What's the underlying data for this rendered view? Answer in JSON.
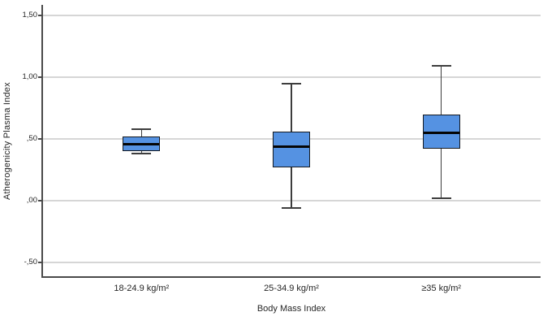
{
  "chart_data": {
    "type": "box",
    "title": "",
    "xlabel": "Body Mass Index",
    "ylabel": "Atherogenicity Plasma Index",
    "categories": [
      "18-24.9 kg/m²",
      "25-34.9 kg/m²",
      "≥35 kg/m²"
    ],
    "series": [
      {
        "category": "18-24.9 kg/m²",
        "min": 0.38,
        "q1": 0.4,
        "median": 0.46,
        "q3": 0.52,
        "max": 0.58
      },
      {
        "category": "25-34.9 kg/m²",
        "min": -0.06,
        "q1": 0.27,
        "median": 0.44,
        "q3": 0.56,
        "max": 0.95
      },
      {
        "category": "≥35 kg/m²",
        "min": 0.02,
        "q1": 0.42,
        "median": 0.55,
        "q3": 0.7,
        "max": 1.09
      }
    ],
    "yticks": [
      {
        "value": 1.5,
        "label": "1,50"
      },
      {
        "value": 1.0,
        "label": "1,00"
      },
      {
        "value": 0.5,
        "label": ",50"
      },
      {
        "value": 0.0,
        "label": ",00"
      },
      {
        "value": -0.5,
        "label": "-,50"
      }
    ],
    "ylim": [
      -0.615,
      1.585
    ],
    "grid": true,
    "legend": "none",
    "outliers": [],
    "colors": {
      "box_fill": "#5592e2",
      "box_border": "#15191f",
      "median": "#050505",
      "whisker": "#3d3d3d",
      "gridline": "#d6d6d6",
      "axis": "#4a4a4a",
      "text": "#262626"
    }
  }
}
